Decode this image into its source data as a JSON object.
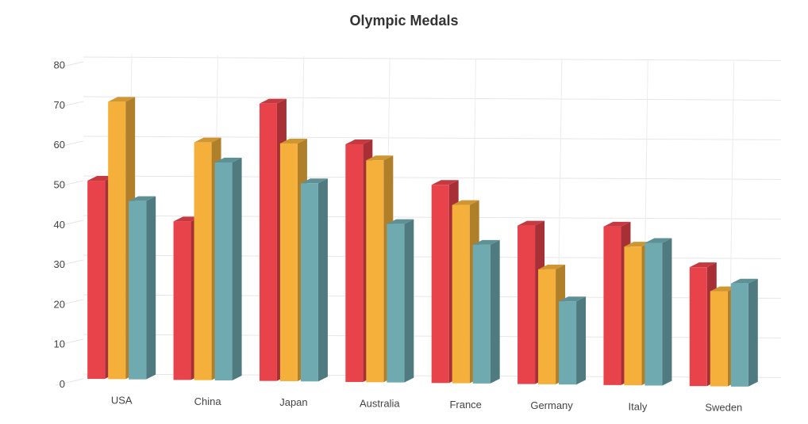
{
  "chart_data": {
    "type": "bar",
    "title": "Olympic Medals",
    "xlabel": "",
    "ylabel": "",
    "ylim": [
      0,
      80
    ],
    "yticks": [
      0,
      10,
      20,
      30,
      40,
      50,
      60,
      70,
      80
    ],
    "grid": true,
    "legend": "none",
    "categories": [
      "USA",
      "China",
      "Japan",
      "Australia",
      "France",
      "Germany",
      "Italy",
      "Sweden"
    ],
    "series": [
      {
        "color": "#e8434b",
        "values": [
          50,
          40,
          70,
          60,
          50,
          40,
          40,
          30
        ]
      },
      {
        "color": "#f5b03b",
        "values": [
          70,
          60,
          60,
          56,
          45,
          29,
          35,
          24
        ]
      },
      {
        "color": "#6eaab0",
        "values": [
          45,
          55,
          50,
          40,
          35,
          21,
          36,
          26
        ]
      }
    ]
  }
}
